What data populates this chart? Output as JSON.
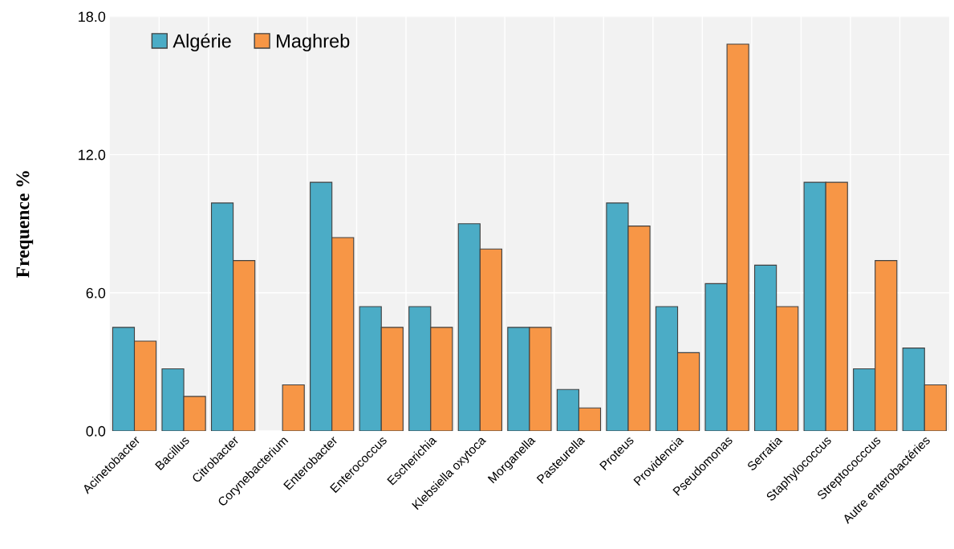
{
  "chart_data": {
    "type": "bar",
    "ylabel": "Frequence %",
    "categories": [
      "Acinetobacter",
      "Bacillus",
      "Citrobacter",
      "Corynebacterium",
      "Enterobacter",
      "Enterococcus",
      "Escherichia",
      "Klebsiella oxytoca",
      "Morganella",
      "Pasteurella",
      "Proteus",
      "Providencia",
      "Pseudomonas",
      "Serratia",
      "Staphylococcus",
      "Streptococccus",
      "Autre enterobactéries"
    ],
    "series": [
      {
        "name": "Algérie",
        "color": "#4bacc6",
        "values": [
          4.5,
          2.7,
          9.9,
          0,
          10.8,
          5.4,
          5.4,
          9.0,
          4.5,
          1.8,
          9.9,
          5.4,
          6.4,
          7.2,
          10.8,
          2.7,
          3.6
        ]
      },
      {
        "name": "Maghreb",
        "color": "#f79646",
        "values": [
          3.9,
          1.5,
          7.4,
          2.0,
          8.4,
          4.5,
          4.5,
          7.9,
          4.5,
          1.0,
          8.9,
          3.4,
          16.8,
          5.4,
          10.8,
          7.4,
          2.0
        ]
      }
    ],
    "ylim": [
      0,
      18
    ],
    "yticks": [
      {
        "value": 0,
        "label": "0.0"
      },
      {
        "value": 6,
        "label": "6.0"
      },
      {
        "value": 12,
        "label": "12.0"
      },
      {
        "value": 18,
        "label": "18.0"
      }
    ],
    "grid": true,
    "legend": "top left"
  }
}
